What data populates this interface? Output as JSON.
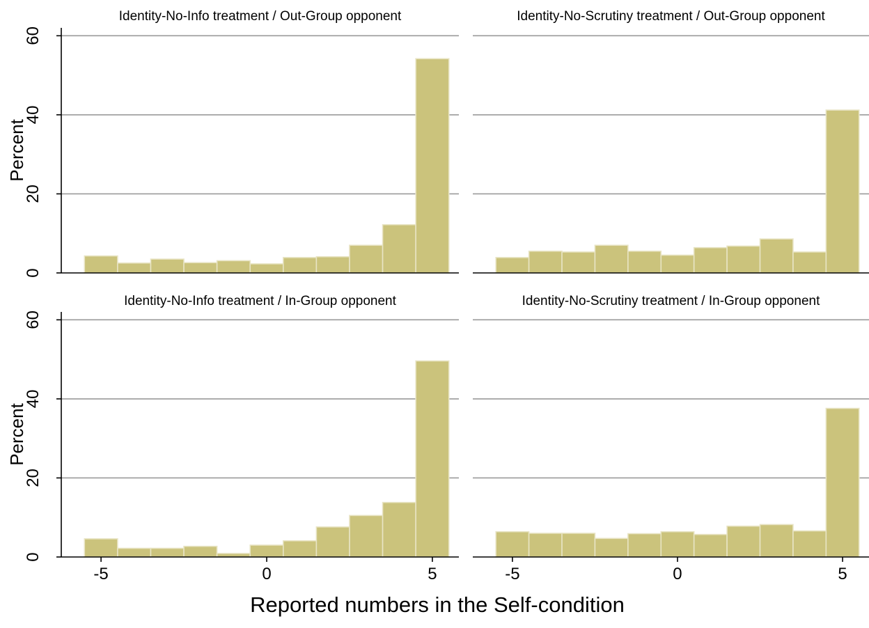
{
  "chart_data": {
    "type": "bar",
    "layout": "2x2 facet grid of histograms",
    "xlabel": "Reported numbers in the Self-condition",
    "ylabel": "Percent",
    "bar_color": "#cbc37c",
    "bar_edge_color": "#e8e4c4",
    "gridlines": true,
    "xlim": [
      -6.2,
      5.8
    ],
    "ylim": [
      0,
      62
    ],
    "x_ticks": [
      -5,
      0,
      5
    ],
    "y_ticks": [
      0,
      20,
      40,
      60
    ],
    "bins": [
      [
        -5.5,
        -4.5
      ],
      [
        -4.5,
        -3.5
      ],
      [
        -3.5,
        -2.5
      ],
      [
        -2.5,
        -1.5
      ],
      [
        -1.5,
        -0.5
      ],
      [
        -0.5,
        0.5
      ],
      [
        0.5,
        1.5
      ],
      [
        1.5,
        2.5
      ],
      [
        2.5,
        3.5
      ],
      [
        3.5,
        4.5
      ],
      [
        4.5,
        5.5
      ]
    ],
    "panels": [
      {
        "title": "Identity-No-Info treatment / Out-Group opponent",
        "values": [
          4.3,
          2.5,
          3.5,
          2.6,
          3.1,
          2.3,
          3.9,
          4.1,
          7.0,
          12.2,
          54.2
        ]
      },
      {
        "title": "Identity-No-Scrutiny treatment / Out-Group opponent",
        "values": [
          3.9,
          5.5,
          5.3,
          7.0,
          5.5,
          4.5,
          6.4,
          6.8,
          8.6,
          5.3,
          41.2
        ]
      },
      {
        "title": "Identity-No-Info treatment / In-Group opponent",
        "values": [
          4.6,
          2.2,
          2.2,
          2.7,
          0.9,
          3.0,
          4.1,
          7.6,
          10.5,
          13.8,
          49.6
        ]
      },
      {
        "title": "Identity-No-Scrutiny treatment / In-Group opponent",
        "values": [
          6.4,
          6.0,
          6.0,
          4.7,
          5.9,
          6.4,
          5.7,
          7.8,
          8.2,
          6.6,
          37.6
        ]
      }
    ]
  }
}
